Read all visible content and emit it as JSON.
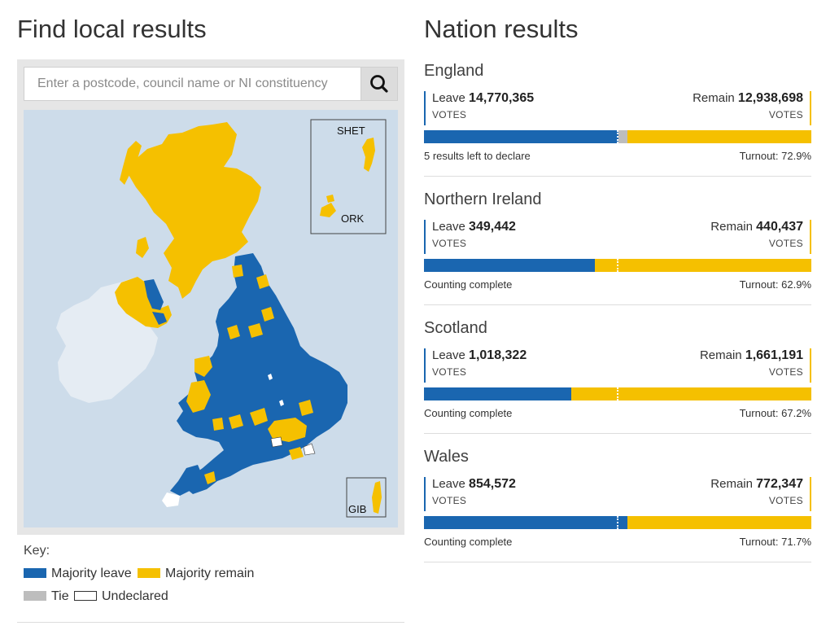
{
  "local": {
    "title": "Find local results",
    "search": {
      "placeholder": "Enter a postcode, council name or NI constituency",
      "value": ""
    },
    "search_icon": "search-icon",
    "map": {
      "insets": {
        "shetland": "SHET",
        "orkney": "ORK",
        "gibraltar": "GIB"
      }
    },
    "key": {
      "title": "Key:",
      "items": [
        {
          "label": "Majority leave",
          "color": "#1a66b0"
        },
        {
          "label": "Majority remain",
          "color": "#f5c000"
        },
        {
          "label": "Tie",
          "color": "#bdbdbd"
        },
        {
          "label": "Undeclared",
          "color": "#ffffff"
        }
      ]
    }
  },
  "nation_results": {
    "title": "Nation results",
    "leave_label": "Leave",
    "remain_label": "Remain",
    "votes_label": "VOTES",
    "nations": [
      {
        "name": "England",
        "leave": "14,770,365",
        "remain": "12,938,698",
        "leave_share": 0.503,
        "tie_share": 0.023,
        "status": "5 results left to declare",
        "turnout": "Turnout: 72.9%"
      },
      {
        "name": "Northern Ireland",
        "leave": "349,442",
        "remain": "440,437",
        "leave_share": 0.442,
        "tie_share": 0,
        "status": "Counting complete",
        "turnout": "Turnout: 62.9%"
      },
      {
        "name": "Scotland",
        "leave": "1,018,322",
        "remain": "1,661,191",
        "leave_share": 0.38,
        "tie_share": 0,
        "status": "Counting complete",
        "turnout": "Turnout: 67.2%"
      },
      {
        "name": "Wales",
        "leave": "854,572",
        "remain": "772,347",
        "leave_share": 0.525,
        "tie_share": 0,
        "status": "Counting complete",
        "turnout": "Turnout: 71.7%"
      }
    ]
  }
}
